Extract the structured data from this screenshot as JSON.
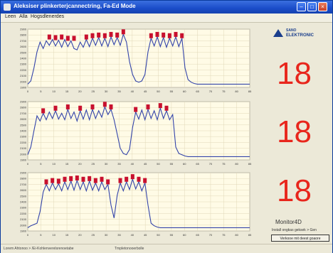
{
  "window": {
    "title": "Aleksiser plinkerterjcannectring, Fa-Ed Mode"
  },
  "menu": {
    "items": [
      "Leen",
      "Alla",
      "Hogsdlenerdes"
    ]
  },
  "logo": {
    "line1": "SANO",
    "line2": "ELEKTRONIC"
  },
  "readouts": [
    "18",
    "18",
    "18"
  ],
  "monitor": {
    "label": "Monitor4D",
    "note": "Install ongkas geksek > Gen",
    "button_label": "Verkooe mit deest goaore"
  },
  "status": {
    "left": "Lorem Ahtonoo > /Ei-Kohlenverelsrenoetabe",
    "right": "Tmpletonooerbolle"
  },
  "colors": {
    "line": "#3344aa",
    "marker": "#c8102e",
    "readout": "#e8261c",
    "plot_bg": "#fffbe6"
  },
  "chart_data": [
    {
      "type": "line",
      "x": [
        0,
        1,
        2,
        3,
        4,
        5,
        6,
        7,
        8,
        9,
        10,
        11,
        12,
        13,
        14,
        15,
        16,
        17,
        18,
        19,
        20,
        21,
        22,
        23,
        24,
        25,
        26,
        27,
        28,
        29,
        30,
        31,
        32,
        33,
        34,
        35,
        36,
        37,
        38,
        39,
        40,
        41,
        42,
        43,
        44,
        45,
        46,
        47,
        48,
        49,
        50,
        51,
        52,
        53,
        54,
        55,
        56,
        57,
        58,
        59,
        60,
        61,
        62,
        63,
        64,
        65,
        66,
        67,
        68,
        69,
        70,
        71,
        72
      ],
      "y": [
        5,
        10,
        30,
        55,
        70,
        60,
        72,
        65,
        74,
        64,
        73,
        62,
        74,
        63,
        72,
        60,
        58,
        70,
        62,
        74,
        63,
        76,
        65,
        77,
        64,
        76,
        63,
        78,
        66,
        77,
        65,
        82,
        70,
        40,
        20,
        10,
        8,
        10,
        20,
        55,
        76,
        64,
        78,
        63,
        77,
        62,
        76,
        64,
        78,
        63,
        76,
        30,
        12,
        8,
        6,
        5,
        5,
        5,
        5,
        5,
        5,
        5,
        5,
        5,
        5,
        5,
        5,
        5,
        5,
        5,
        5,
        5,
        5
      ],
      "markers_x": [
        7,
        9,
        11,
        13,
        15,
        19,
        21,
        23,
        25,
        27,
        29,
        31,
        40,
        42,
        44,
        46,
        48,
        50
      ],
      "markers_y": [
        74,
        73,
        74,
        72,
        72,
        74,
        76,
        77,
        76,
        78,
        77,
        82,
        76,
        78,
        77,
        76,
        78,
        76
      ],
      "xticks": [
        "0",
        "5",
        "10",
        "15",
        "20",
        "25",
        "30",
        "35",
        "40",
        "45",
        "50",
        "55",
        "60",
        "65",
        "70",
        "75",
        "80",
        "85"
      ],
      "yticks": [
        "1900",
        "2000",
        "2100",
        "2200",
        "2300",
        "2400",
        "2500",
        "2600",
        "2700",
        "2800",
        "2900"
      ],
      "ylim": [
        0,
        90
      ]
    },
    {
      "type": "line",
      "x": [
        0,
        1,
        2,
        3,
        4,
        5,
        6,
        7,
        8,
        9,
        10,
        11,
        12,
        13,
        14,
        15,
        16,
        17,
        18,
        19,
        20,
        21,
        22,
        23,
        24,
        25,
        26,
        27,
        28,
        29,
        30,
        31,
        32,
        33,
        34,
        35,
        36,
        37,
        38,
        39,
        40,
        41,
        42,
        43,
        44,
        45,
        46,
        47,
        48,
        49,
        50,
        51,
        52,
        53,
        54,
        55,
        56,
        57,
        58,
        59,
        60,
        61,
        62,
        63,
        64,
        65,
        66,
        67,
        68,
        69,
        70,
        71,
        72
      ],
      "y": [
        8,
        20,
        45,
        68,
        60,
        72,
        62,
        74,
        64,
        76,
        63,
        72,
        62,
        78,
        64,
        74,
        60,
        76,
        63,
        77,
        62,
        78,
        64,
        76,
        66,
        82,
        70,
        78,
        62,
        40,
        18,
        10,
        8,
        16,
        50,
        74,
        63,
        77,
        62,
        78,
        64,
        76,
        62,
        80,
        64,
        76,
        62,
        70,
        20,
        10,
        8,
        6,
        5,
        5,
        5,
        5,
        5,
        5,
        5,
        5,
        5,
        5,
        5,
        5,
        5,
        5,
        5,
        5,
        5,
        5,
        5,
        5,
        5
      ],
      "markers_x": [
        5,
        9,
        13,
        17,
        21,
        25,
        27,
        35,
        39,
        43,
        45
      ],
      "markers_y": [
        72,
        76,
        78,
        76,
        78,
        82,
        78,
        74,
        78,
        80,
        76
      ],
      "xticks": [
        "0",
        "5",
        "10",
        "15",
        "20",
        "25",
        "30",
        "35",
        "40",
        "45",
        "50",
        "55",
        "60",
        "65",
        "70",
        "75",
        "80",
        "85"
      ],
      "yticks": [
        "1900",
        "2000",
        "2100",
        "2200",
        "2300",
        "2400",
        "2500",
        "2600",
        "2700",
        "2800",
        "2900"
      ],
      "ylim": [
        0,
        90
      ]
    },
    {
      "type": "line",
      "x": [
        0,
        1,
        2,
        3,
        4,
        5,
        6,
        7,
        8,
        9,
        10,
        11,
        12,
        13,
        14,
        15,
        16,
        17,
        18,
        19,
        20,
        21,
        22,
        23,
        24,
        25,
        26,
        27,
        28,
        29,
        30,
        31,
        32,
        33,
        34,
        35,
        36,
        37,
        38,
        39,
        40,
        41,
        42,
        43,
        44,
        45,
        46,
        47,
        48,
        49,
        50,
        51,
        52,
        53,
        54,
        55,
        56,
        57,
        58,
        59,
        60,
        61,
        62,
        63,
        64,
        65,
        66,
        67,
        68,
        69,
        70,
        71,
        72
      ],
      "y": [
        5,
        8,
        10,
        12,
        30,
        60,
        72,
        62,
        74,
        64,
        73,
        62,
        76,
        64,
        77,
        63,
        78,
        64,
        76,
        62,
        77,
        63,
        74,
        62,
        76,
        64,
        72,
        40,
        20,
        55,
        74,
        62,
        76,
        64,
        80,
        65,
        76,
        62,
        74,
        40,
        12,
        8,
        6,
        5,
        5,
        5,
        5,
        5,
        5,
        5,
        5,
        5,
        5,
        5,
        5,
        5,
        5,
        5,
        5,
        5,
        5,
        5,
        5,
        5,
        5,
        5,
        5,
        5,
        5,
        5,
        5,
        5,
        5
      ],
      "markers_x": [
        6,
        8,
        10,
        12,
        14,
        16,
        18,
        20,
        22,
        24,
        26,
        30,
        32,
        34,
        36,
        38
      ],
      "markers_y": [
        72,
        74,
        73,
        76,
        77,
        78,
        76,
        77,
        74,
        76,
        72,
        74,
        76,
        80,
        76,
        74
      ],
      "xticks": [
        "0",
        "5",
        "10",
        "15",
        "20",
        "25",
        "30",
        "35",
        "40",
        "45",
        "50",
        "55",
        "60",
        "65",
        "70",
        "75",
        "80",
        "85"
      ],
      "yticks": [
        "1900",
        "2000",
        "2100",
        "2200",
        "2300",
        "2400",
        "2500",
        "2600",
        "2700",
        "2800",
        "2900"
      ],
      "ylim": [
        0,
        90
      ]
    }
  ]
}
